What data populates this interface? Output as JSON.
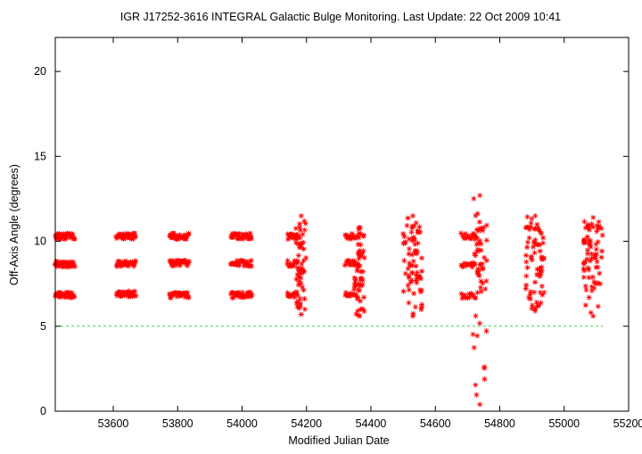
{
  "chart_data": {
    "type": "scatter",
    "title": "IGR J17252-3616   INTEGRAL Galactic Bulge Monitoring.  Last Update: 22 Oct 2009 10:41",
    "xlabel": "Modified Julian Date",
    "ylabel": "Off-Axis Angle (degrees)",
    "xlim": [
      53420,
      55200
    ],
    "ylim": [
      0,
      22
    ],
    "xticks": [
      53600,
      53800,
      54000,
      54200,
      54400,
      54600,
      54800,
      55000,
      55200
    ],
    "yticks": [
      0,
      5,
      10,
      15,
      20
    ],
    "grid": false,
    "reference_line": {
      "y": 5,
      "color": "#00cc00",
      "style": "dashed"
    },
    "marker": {
      "shape": "asterisk",
      "color": "#ff0000"
    },
    "series": [
      {
        "clusters": [
          {
            "x_range": [
              53420,
              53480
            ],
            "mode": "bands",
            "levels": [
              10.3,
              8.65,
              6.85
            ]
          },
          {
            "x_range": [
              53610,
              53670
            ],
            "mode": "bands",
            "levels": [
              10.3,
              8.7,
              6.9
            ]
          },
          {
            "x_range": [
              53775,
              53835
            ],
            "mode": "bands",
            "levels": [
              10.3,
              8.7,
              6.85
            ]
          },
          {
            "x_range": [
              53965,
              54030
            ],
            "mode": "bands",
            "levels": [
              10.3,
              8.7,
              6.85
            ]
          },
          {
            "x_range": [
              54140,
              54200
            ],
            "mode": "mixed",
            "levels": [
              10.3,
              8.7,
              6.85
            ],
            "y_range": [
              5.7,
              11.5
            ]
          },
          {
            "x_range": [
              54320,
              54380
            ],
            "mode": "mixed",
            "levels": [
              10.3,
              8.7,
              6.85
            ],
            "y_range": [
              5.6,
              10.8
            ]
          },
          {
            "x_range": [
              54500,
              54560
            ],
            "mode": "spread",
            "y_range": [
              5.6,
              11.5
            ]
          },
          {
            "x_range": [
              54680,
              54760
            ],
            "mode": "mixed",
            "levels": [
              10.3,
              8.65,
              6.8
            ],
            "y_range": [
              0.4,
              12.7
            ]
          },
          {
            "x_range": [
              54880,
              54940
            ],
            "mode": "spread",
            "y_range": [
              5.9,
              11.5
            ]
          },
          {
            "x_range": [
              55060,
              55120
            ],
            "mode": "spread",
            "y_range": [
              5.6,
              11.4
            ]
          }
        ]
      }
    ]
  }
}
